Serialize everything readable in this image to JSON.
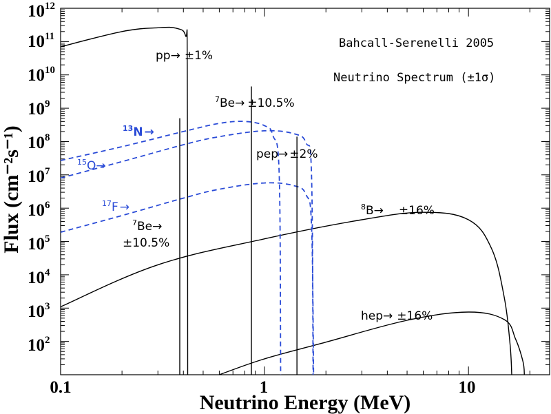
{
  "chart_data": {
    "type": "line",
    "xlabel": "Neutrino Energy (MeV)",
    "ylabel": "Flux (cm⁻²s⁻¹)",
    "xscale": "log",
    "yscale": "log",
    "xlim": [
      0.1,
      25
    ],
    "ylim": [
      10,
      1000000000000.0
    ],
    "x_tick_labels": [
      "0.1",
      "1",
      "10"
    ],
    "y_tick_labels": [
      {
        "base": "10",
        "exp": "2"
      },
      {
        "base": "10",
        "exp": "3"
      },
      {
        "base": "10",
        "exp": "4"
      },
      {
        "base": "10",
        "exp": "5"
      },
      {
        "base": "10",
        "exp": "6"
      },
      {
        "base": "10",
        "exp": "7"
      },
      {
        "base": "10",
        "exp": "8"
      },
      {
        "base": "10",
        "exp": "9"
      },
      {
        "base": "10",
        "exp": "10"
      },
      {
        "base": "10",
        "exp": "11"
      },
      {
        "base": "10",
        "exp": "12"
      }
    ],
    "annotations_top_right": [
      "Bahcall-Serenelli 2005",
      "Neutrino Spectrum (±1σ)"
    ],
    "continuum_series": [
      {
        "source": "pp",
        "color": "#000000",
        "dashed": false,
        "x": [
          0.1,
          0.2,
          0.3,
          0.37,
          0.41,
          0.418,
          0.42
        ],
        "y": [
          70000000000.0,
          200000000000.0,
          260000000000.0,
          250000000000.0,
          150000000000.0,
          20000000000.0,
          10
        ]
      },
      {
        "source": "8B",
        "color": "#000000",
        "dashed": false,
        "x": [
          0.1,
          0.3,
          1,
          3,
          6,
          10,
          13,
          15,
          16,
          16.3
        ],
        "y": [
          1100,
          20000.0,
          120000.0,
          450000.0,
          750000.0,
          450000.0,
          60000.0,
          2000,
          80,
          10
        ]
      },
      {
        "source": "hep",
        "color": "#000000",
        "dashed": false,
        "x": [
          0.6,
          1,
          2,
          5,
          10,
          15,
          17,
          18.5,
          18.8
        ],
        "y": [
          10,
          30,
          95,
          430,
          760,
          450,
          120,
          25,
          10
        ]
      },
      {
        "source": "13N",
        "color": "#2a4bd7",
        "dashed": true,
        "x": [
          0.1,
          0.2,
          0.4,
          0.6,
          0.8,
          1.0,
          1.1,
          1.18,
          1.2
        ],
        "y": [
          27000000.0,
          70000000.0,
          200000000.0,
          350000000.0,
          400000000.0,
          300000000.0,
          150000000.0,
          10000000.0,
          10
        ]
      },
      {
        "source": "15O",
        "color": "#2a4bd7",
        "dashed": true,
        "x": [
          0.1,
          0.2,
          0.4,
          0.6,
          1.0,
          1.4,
          1.6,
          1.7,
          1.73
        ],
        "y": [
          8000000.0,
          25000000.0,
          80000000.0,
          140000000.0,
          210000000.0,
          170000000.0,
          90000000.0,
          10000000.0,
          10
        ]
      },
      {
        "source": "17F",
        "color": "#2a4bd7",
        "dashed": true,
        "x": [
          0.1,
          0.2,
          0.4,
          0.6,
          1.0,
          1.4,
          1.6,
          1.7,
          1.74
        ],
        "y": [
          190000.0,
          600000.0,
          2000000.0,
          3700000.0,
          5700000.0,
          4700000.0,
          2500000.0,
          300000.0,
          10
        ]
      }
    ],
    "line_series": [
      {
        "source": "7Be",
        "energy": 0.384,
        "flux": 500000000.0
      },
      {
        "source": "7Be",
        "energy": 0.862,
        "flux": 4500000000.0
      },
      {
        "source": "pep",
        "energy": 1.442,
        "flux": 140000000.0
      }
    ],
    "labels": {
      "pp": {
        "name": "pp",
        "arrow": "→",
        "unc": "±1%"
      },
      "be7_high": {
        "sup": "7",
        "name": "Be",
        "arrow": "→",
        "unc": "±10.5%"
      },
      "be7_low": {
        "sup": "7",
        "name": "Be",
        "arrow": "→",
        "unc": "±10.5%"
      },
      "pep": {
        "name": "pep",
        "arrow": "→",
        "unc": "±2%"
      },
      "n13": {
        "sup": "13",
        "name": "N",
        "arrow": "→"
      },
      "o15": {
        "sup": "15",
        "name": "O",
        "arrow": "→"
      },
      "f17": {
        "sup": "17",
        "name": "F",
        "arrow": "→"
      },
      "b8": {
        "sup": "8",
        "name": "B",
        "arrow": "→",
        "unc": "±16%"
      },
      "hep": {
        "name": "hep",
        "arrow": "→",
        "unc": "±16%"
      }
    },
    "colors": {
      "axes": "#000000",
      "cno": "#2a4bd7"
    }
  }
}
